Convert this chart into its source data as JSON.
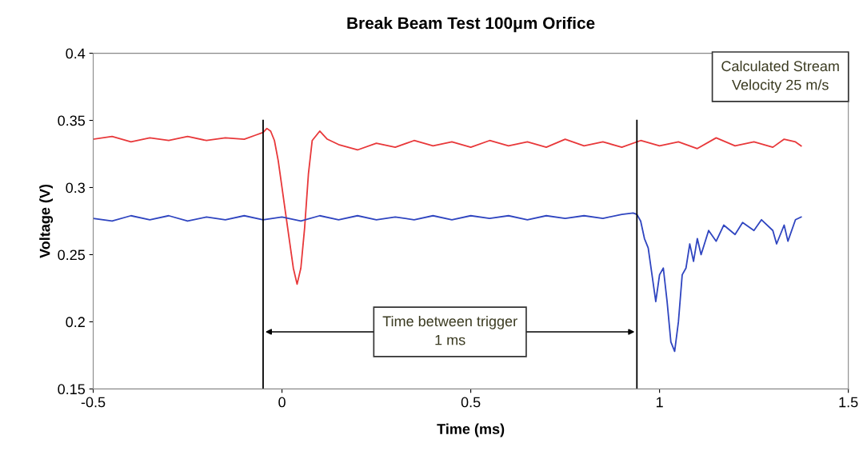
{
  "chart_data": {
    "type": "line",
    "title": "Break Beam Test 100μm Orifice",
    "xlabel": "Time (ms)",
    "ylabel": "Voltage (V)",
    "xlim": [
      -0.5,
      1.5
    ],
    "xticks": [
      -0.5,
      0,
      0.5,
      1,
      1.5
    ],
    "ylim": [
      0.15,
      0.4
    ],
    "yticks": [
      0.15,
      0.2,
      0.25,
      0.3,
      0.35,
      0.4
    ],
    "grid": false,
    "legend": false,
    "marker": "none",
    "line_style": "solid",
    "series": [
      {
        "color": "#e8383a",
        "x": [
          -0.5,
          -0.45,
          -0.4,
          -0.35,
          -0.3,
          -0.25,
          -0.2,
          -0.15,
          -0.1,
          -0.07,
          -0.05,
          -0.04,
          -0.03,
          -0.02,
          -0.01,
          0,
          0.01,
          0.02,
          0.03,
          0.04,
          0.05,
          0.06,
          0.07,
          0.08,
          0.1,
          0.12,
          0.15,
          0.2,
          0.25,
          0.3,
          0.35,
          0.4,
          0.45,
          0.5,
          0.55,
          0.6,
          0.65,
          0.7,
          0.75,
          0.8,
          0.85,
          0.9,
          0.95,
          1.0,
          1.05,
          1.1,
          1.15,
          1.2,
          1.25,
          1.3,
          1.33,
          1.36,
          1.375
        ],
        "values": [
          0.336,
          0.338,
          0.334,
          0.337,
          0.335,
          0.338,
          0.335,
          0.337,
          0.336,
          0.339,
          0.341,
          0.344,
          0.342,
          0.335,
          0.32,
          0.3,
          0.28,
          0.26,
          0.24,
          0.228,
          0.24,
          0.27,
          0.31,
          0.335,
          0.342,
          0.336,
          0.332,
          0.328,
          0.333,
          0.33,
          0.335,
          0.331,
          0.334,
          0.33,
          0.335,
          0.331,
          0.334,
          0.33,
          0.336,
          0.331,
          0.334,
          0.33,
          0.335,
          0.331,
          0.334,
          0.329,
          0.337,
          0.331,
          0.334,
          0.33,
          0.336,
          0.334,
          0.331
        ]
      },
      {
        "color": "#2f45c0",
        "x": [
          -0.5,
          -0.45,
          -0.4,
          -0.35,
          -0.3,
          -0.25,
          -0.2,
          -0.15,
          -0.1,
          -0.05,
          0,
          0.05,
          0.1,
          0.15,
          0.2,
          0.25,
          0.3,
          0.35,
          0.4,
          0.45,
          0.5,
          0.55,
          0.6,
          0.65,
          0.7,
          0.75,
          0.8,
          0.85,
          0.9,
          0.93,
          0.94,
          0.95,
          0.96,
          0.97,
          0.98,
          0.99,
          1.0,
          1.01,
          1.02,
          1.03,
          1.04,
          1.05,
          1.06,
          1.07,
          1.08,
          1.09,
          1.1,
          1.11,
          1.13,
          1.15,
          1.17,
          1.2,
          1.22,
          1.25,
          1.27,
          1.3,
          1.31,
          1.33,
          1.34,
          1.36,
          1.375
        ],
        "values": [
          0.277,
          0.275,
          0.279,
          0.276,
          0.279,
          0.275,
          0.278,
          0.276,
          0.279,
          0.276,
          0.278,
          0.275,
          0.279,
          0.276,
          0.279,
          0.276,
          0.278,
          0.276,
          0.279,
          0.276,
          0.279,
          0.277,
          0.279,
          0.276,
          0.279,
          0.277,
          0.279,
          0.277,
          0.28,
          0.281,
          0.28,
          0.275,
          0.262,
          0.255,
          0.235,
          0.215,
          0.235,
          0.24,
          0.215,
          0.185,
          0.178,
          0.2,
          0.235,
          0.24,
          0.258,
          0.245,
          0.262,
          0.25,
          0.268,
          0.26,
          0.272,
          0.265,
          0.274,
          0.268,
          0.276,
          0.268,
          0.258,
          0.272,
          0.26,
          0.276,
          0.278
        ]
      }
    ],
    "ref_lines": [
      {
        "axis": "x",
        "value": -0.05,
        "color": "#000000"
      },
      {
        "axis": "x",
        "value": 0.94,
        "color": "#000000"
      }
    ],
    "annotations": [
      "Time between trigger\n1 ms",
      "Calculated Stream\nVelocity 25 m/s"
    ]
  }
}
